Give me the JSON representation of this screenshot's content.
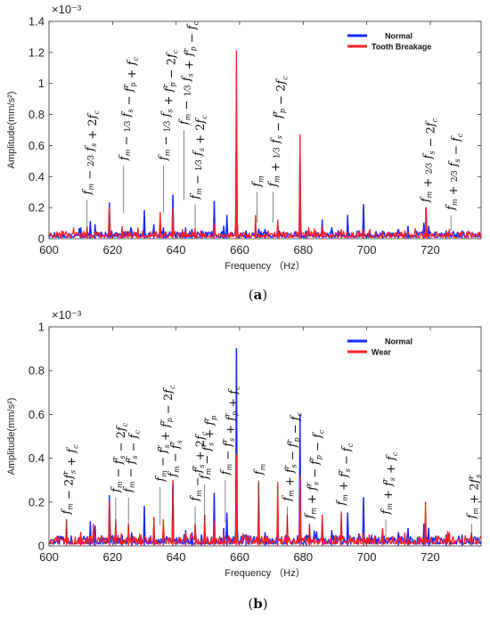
{
  "colors": {
    "normal": "#1428ff",
    "fault": "#ff2020"
  },
  "chart_data": [
    {
      "type": "line",
      "panel_label": "(a)",
      "exponent": "×10⁻³",
      "xlabel": "Frequency （Hz）",
      "ylabel": "Amplitude(mm/s²)",
      "xlim": [
        600,
        736
      ],
      "ylim": [
        0,
        1.4
      ],
      "xticks": [
        600,
        620,
        640,
        660,
        680,
        700,
        720
      ],
      "yticks": [
        0,
        0.2,
        0.4,
        0.6,
        0.8,
        1,
        1.2,
        1.4
      ],
      "ytick_labels": [
        "0",
        "0.2",
        "0.4",
        "0.6",
        "0.8",
        "1",
        "1.2",
        "1.4"
      ],
      "grid": false,
      "legend_position": "top-right",
      "series": [
        {
          "name": "Normal",
          "peaks": [
            [
              610,
              0.07
            ],
            [
              613,
              0.11
            ],
            [
              614.5,
              0.09
            ],
            [
              619,
              0.23
            ],
            [
              623,
              0.05
            ],
            [
              626,
              0.06
            ],
            [
              630,
              0.18
            ],
            [
              633,
              0.09
            ],
            [
              636,
              0.07
            ],
            [
              639,
              0.28
            ],
            [
              643,
              0.07
            ],
            [
              645,
              0.06
            ],
            [
              648,
              0.05
            ],
            [
              652,
              0.24
            ],
            [
              655,
              0.08
            ],
            [
              656,
              0.15
            ],
            [
              659,
              0.9
            ],
            [
              662,
              0.05
            ],
            [
              668,
              0.06
            ],
            [
              672,
              0.1
            ],
            [
              679,
              0.6
            ],
            [
              681,
              0.05
            ],
            [
              686,
              0.12
            ],
            [
              689,
              0.07
            ],
            [
              694,
              0.15
            ],
            [
              699,
              0.22
            ],
            [
              705,
              0.05
            ],
            [
              710,
              0.06
            ],
            [
              713,
              0.08
            ],
            [
              718,
              0.1
            ],
            [
              719.5,
              0.08
            ],
            [
              725,
              0.05
            ],
            [
              730,
              0.05
            ]
          ]
        },
        {
          "name": "Tooth Breakage",
          "peaks": [
            [
              604,
              0.05
            ],
            [
              612,
              0.08
            ],
            [
              619,
              0.2
            ],
            [
              623,
              0.08
            ],
            [
              628,
              0.07
            ],
            [
              635,
              0.17
            ],
            [
              639,
              0.2
            ],
            [
              642,
              0.06
            ],
            [
              646,
              0.07
            ],
            [
              652,
              0.1
            ],
            [
              659,
              1.21
            ],
            [
              665,
              0.15
            ],
            [
              669,
              0.05
            ],
            [
              672,
              0.12
            ],
            [
              679,
              0.67
            ],
            [
              686,
              0.08
            ],
            [
              692,
              0.06
            ],
            [
              699,
              0.06
            ],
            [
              712,
              0.05
            ],
            [
              718.7,
              0.2
            ],
            [
              726,
              0.06
            ],
            [
              732,
              0.05
            ]
          ]
        }
      ],
      "annotations": [
        {
          "x": 612,
          "y": 0.25,
          "parts": [
            [
              "fm",
              "m"
            ],
            [
              "− ²⁄₃ fs",
              "s"
            ],
            [
              "+2fc",
              "c"
            ]
          ],
          "text": "f_m − 2/3 f_s + 2f_c"
        },
        {
          "x": 623.5,
          "y": 0.47,
          "text": "f_m − 1/3 f_s − f^r_p + f_c"
        },
        {
          "x": 636,
          "y": 0.47,
          "text": "f_m − 1/3 f_s + f^r_p − 2f_c"
        },
        {
          "x": 642.5,
          "y": 0.7,
          "text": "f_m − 1/3 f_s + f^r_p − f_c"
        },
        {
          "x": 646,
          "y": 0.22,
          "text": "f_m − 1/3 f_s + 2f_c"
        },
        {
          "x": 665.5,
          "y": 0.3,
          "text": "f_m"
        },
        {
          "x": 670.5,
          "y": 0.3,
          "text": "f_m + 1/3 f_s − f^r_p − 2f_c"
        },
        {
          "x": 718.5,
          "y": 0.2,
          "text": "f_m + 2/3 f_s − 2f_c"
        },
        {
          "x": 726.5,
          "y": 0.15,
          "text": "f_m + 2/3 f_s − f_c"
        }
      ]
    },
    {
      "type": "line",
      "panel_label": "(b)",
      "exponent": "×10⁻³",
      "xlabel": "Frequency （Hz）",
      "ylabel": "Amplitude(mm/s²)",
      "xlim": [
        600,
        736
      ],
      "ylim": [
        0,
        1
      ],
      "xticks": [
        600,
        620,
        640,
        660,
        680,
        700,
        720
      ],
      "yticks": [
        0,
        0.2,
        0.4,
        0.6,
        0.8,
        1
      ],
      "ytick_labels": [
        "0",
        "0.2",
        "0.4",
        "0.6",
        "0.8",
        "1"
      ],
      "grid": false,
      "legend_position": "top-right",
      "series": [
        {
          "name": "Normal",
          "peaks": [
            [
              610,
              0.06
            ],
            [
              613,
              0.11
            ],
            [
              614.5,
              0.09
            ],
            [
              619,
              0.23
            ],
            [
              623,
              0.05
            ],
            [
              626,
              0.06
            ],
            [
              630,
              0.18
            ],
            [
              633,
              0.09
            ],
            [
              636,
              0.07
            ],
            [
              639,
              0.28
            ],
            [
              643,
              0.07
            ],
            [
              645,
              0.06
            ],
            [
              648,
              0.05
            ],
            [
              652,
              0.24
            ],
            [
              655,
              0.08
            ],
            [
              656,
              0.15
            ],
            [
              659,
              0.9
            ],
            [
              662,
              0.05
            ],
            [
              668,
              0.06
            ],
            [
              672,
              0.1
            ],
            [
              679,
              0.6
            ],
            [
              681,
              0.05
            ],
            [
              686,
              0.12
            ],
            [
              689,
              0.07
            ],
            [
              694,
              0.15
            ],
            [
              699,
              0.22
            ],
            [
              705,
              0.05
            ],
            [
              710,
              0.06
            ],
            [
              713,
              0.08
            ],
            [
              718,
              0.1
            ],
            [
              719.5,
              0.08
            ],
            [
              725,
              0.05
            ],
            [
              730,
              0.05
            ]
          ]
        },
        {
          "name": "Wear",
          "peaks": [
            [
              605.5,
              0.12
            ],
            [
              610,
              0.06
            ],
            [
              614,
              0.1
            ],
            [
              619,
              0.2
            ],
            [
              621,
              0.12
            ],
            [
              625,
              0.1
            ],
            [
              629,
              0.05
            ],
            [
              633,
              0.13
            ],
            [
              636,
              0.12
            ],
            [
              639,
              0.3
            ],
            [
              643,
              0.06
            ],
            [
              646,
              0.1
            ],
            [
              649,
              0.14
            ],
            [
              652,
              0.11
            ],
            [
              655,
              0.06
            ],
            [
              659,
              0.42
            ],
            [
              666,
              0.29
            ],
            [
              672,
              0.29
            ],
            [
              675,
              0.14
            ],
            [
              679,
              0.32
            ],
            [
              682,
              0.1
            ],
            [
              686,
              0.14
            ],
            [
              692,
              0.15
            ],
            [
              699,
              0.06
            ],
            [
              705,
              0.08
            ],
            [
              712,
              0.06
            ],
            [
              718.5,
              0.2
            ],
            [
              726,
              0.06
            ],
            [
              733,
              0.06
            ]
          ]
        }
      ],
      "annotations": [
        {
          "x": 605.5,
          "y": 0.12,
          "text": "f_m − 2f^r_s + f_c"
        },
        {
          "x": 621,
          "y": 0.22,
          "text": "f_m − f^r_s − 2f_c"
        },
        {
          "x": 625,
          "y": 0.22,
          "text": "f_m − f^r_s − f_c"
        },
        {
          "x": 635,
          "y": 0.27,
          "text": "f_m − f^r_s + f^r_p − 2f_c"
        },
        {
          "x": 639,
          "y": 0.29,
          "text": "f_m − f^r_s"
        },
        {
          "x": 646,
          "y": 0.18,
          "text": "f_m − f^r_s + 2f_c"
        },
        {
          "x": 649,
          "y": 0.28,
          "text": "f_m − f^r_s + f^r_p"
        },
        {
          "x": 655.5,
          "y": 0.3,
          "text": "f_m − f^r_s + f^r_p + f_c"
        },
        {
          "x": 666,
          "y": 0.3,
          "text": "f_m"
        },
        {
          "x": 675,
          "y": 0.18,
          "text": "f_m + f^r_s − f^r_p − f_c"
        },
        {
          "x": 682,
          "y": 0.1,
          "text": "f_m + f^r_s − f^r_p − f_c"
        },
        {
          "x": 692,
          "y": 0.16,
          "text": "f_m + f^r_s − f_c"
        },
        {
          "x": 706,
          "y": 0.12,
          "text": "f_m + f^r_s + f_c"
        },
        {
          "x": 733,
          "y": 0.1,
          "text": "f_m + 2f^r_s"
        }
      ]
    }
  ]
}
